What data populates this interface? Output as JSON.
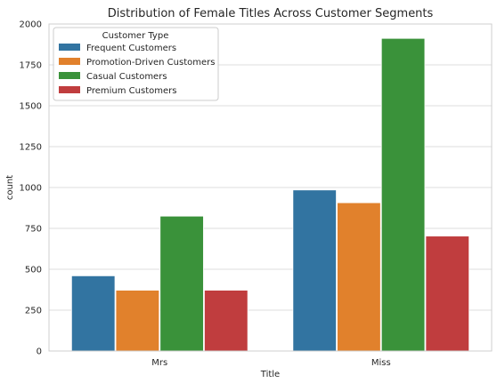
{
  "chart_data": {
    "type": "bar",
    "title": "Distribution of Female Titles Across Customer Segments",
    "xlabel": "Title",
    "ylabel": "count",
    "categories": [
      "Mrs",
      "Miss"
    ],
    "ylim": [
      0,
      2000
    ],
    "yticks": [
      0,
      250,
      500,
      750,
      1000,
      1250,
      1500,
      1750,
      2000
    ],
    "grid": true,
    "legend": {
      "title": "Customer Type",
      "placement": "top-left"
    },
    "series": [
      {
        "name": "Frequent Customers",
        "values": [
          460,
          985
        ],
        "color": "#3274a1"
      },
      {
        "name": "Promotion-Driven Customers",
        "values": [
          372,
          907
        ],
        "color": "#e1812c"
      },
      {
        "name": "Casual Customers",
        "values": [
          825,
          1912
        ],
        "color": "#3a923a"
      },
      {
        "name": "Premium Customers",
        "values": [
          372,
          703
        ],
        "color": "#c03d3e"
      }
    ]
  }
}
